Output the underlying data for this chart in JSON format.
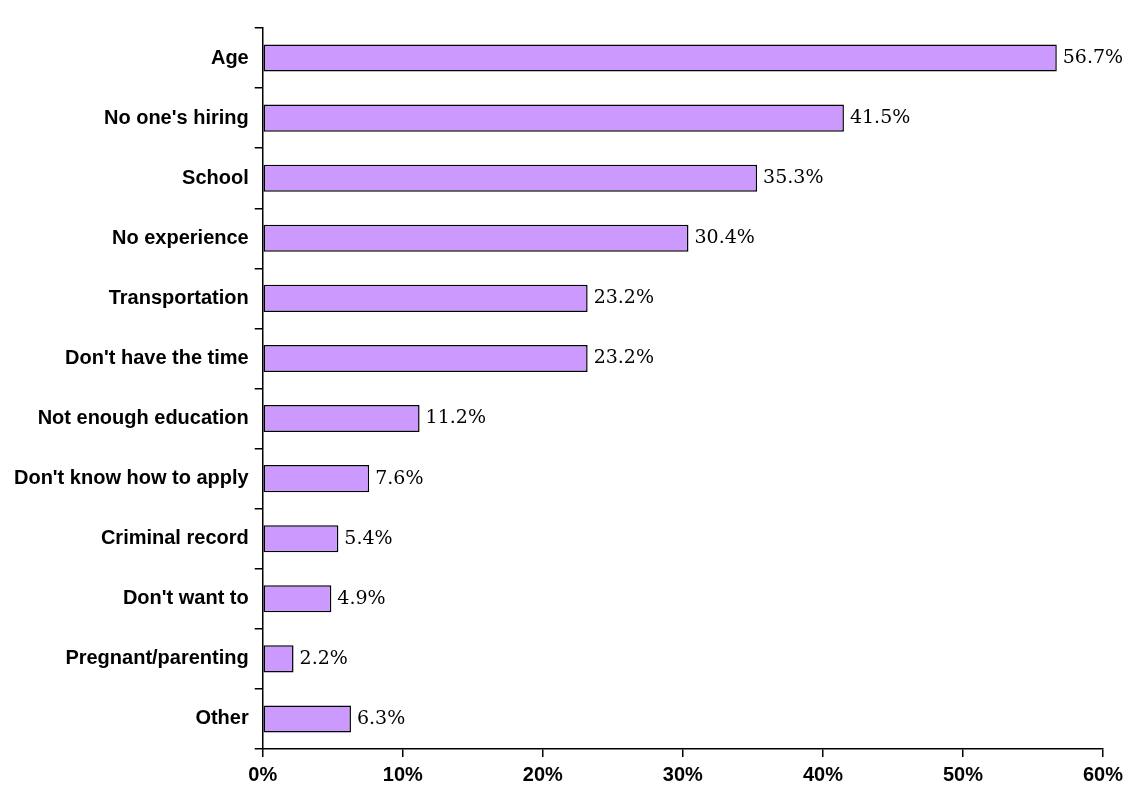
{
  "chart_data": {
    "type": "bar",
    "orientation": "horizontal",
    "categories": [
      "Age",
      "No one's hiring",
      "School",
      "No experience",
      "Transportation",
      "Don't have the time",
      "Not enough education",
      "Don't know how to apply",
      "Criminal record",
      "Don't want to",
      "Pregnant/parenting",
      "Other"
    ],
    "values": [
      56.7,
      41.5,
      35.3,
      30.4,
      23.2,
      23.2,
      11.2,
      7.6,
      5.4,
      4.9,
      2.2,
      6.3
    ],
    "value_labels": [
      "56.7%",
      "41.5%",
      "35.3%",
      "30.4%",
      "23.2%",
      "23.2%",
      "11.2%",
      "7.6%",
      "5.4%",
      "4.9%",
      "2.2%",
      "6.3%"
    ],
    "color": "#cc99ff",
    "xlim": [
      0,
      60
    ],
    "xticks": [
      {
        "value": 0,
        "label": "0%"
      },
      {
        "value": 10,
        "label": "10%"
      },
      {
        "value": 20,
        "label": "20%"
      },
      {
        "value": 30,
        "label": "30%"
      },
      {
        "value": 40,
        "label": "40%"
      },
      {
        "value": 50,
        "label": "50%"
      },
      {
        "value": 60,
        "label": "60%"
      }
    ],
    "grid": false,
    "legend": false
  }
}
